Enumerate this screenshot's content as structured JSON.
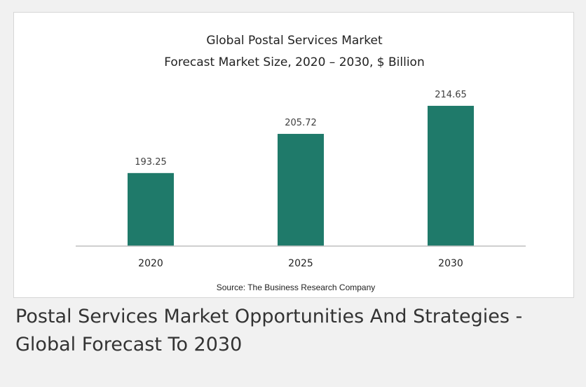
{
  "caption": "Postal Services Market Opportunities And Strategies - Global Forecast To 2030",
  "chart_data": {
    "type": "bar",
    "title": "Global Postal Services Market",
    "subtitle": "Forecast Market Size, 2020 – 2030, $ Billion",
    "categories": [
      "2020",
      "2025",
      "2030"
    ],
    "values": [
      193.25,
      205.72,
      214.65
    ],
    "value_labels": [
      "193.25",
      "205.72",
      "214.65"
    ],
    "xlabel": "",
    "ylabel": "",
    "ylim": [
      170,
      222
    ],
    "grid": false,
    "legend": "none",
    "source": "Source: The Business Research Company",
    "colors": {
      "bar": "#1f7a6a",
      "axis": "#bfbfbf"
    }
  }
}
